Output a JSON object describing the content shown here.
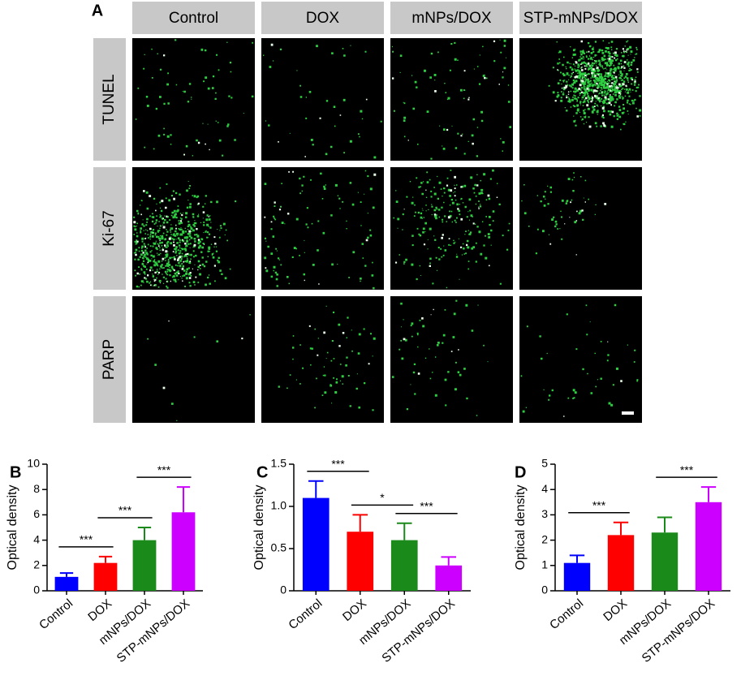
{
  "panel_a": {
    "label": "A",
    "columns": [
      "Control",
      "DOX",
      "mNPs/DOX",
      "STP-mNPs/DOX"
    ],
    "rows": [
      "TUNEL",
      "Ki-67",
      "PARP"
    ]
  },
  "chart_data": [
    {
      "type": "bar",
      "panel": "B",
      "ylabel": "Optical density",
      "categories": [
        "Control",
        "DOX",
        "mNPs/DOX",
        "STP-mNPs/DOX"
      ],
      "values": [
        1.1,
        2.2,
        4.0,
        6.2
      ],
      "errors": [
        0.3,
        0.5,
        1.0,
        2.0
      ],
      "colors": [
        "#0000ff",
        "#ff0000",
        "#1a8a1a",
        "#cc00ff"
      ],
      "ylim": [
        0,
        10
      ],
      "yticks": [
        0,
        2,
        4,
        6,
        8,
        10
      ],
      "annotations": [
        {
          "text": "***",
          "from": 0,
          "to": 1
        },
        {
          "text": "***",
          "from": 1,
          "to": 2
        },
        {
          "text": "***",
          "from": 2,
          "to": 3
        }
      ]
    },
    {
      "type": "bar",
      "panel": "C",
      "ylabel": "Optical density",
      "categories": [
        "Control",
        "DOX",
        "mNPs/DOX",
        "STP-mNPs/DOX"
      ],
      "values": [
        1.1,
        0.7,
        0.6,
        0.3
      ],
      "errors": [
        0.2,
        0.2,
        0.2,
        0.1
      ],
      "colors": [
        "#0000ff",
        "#ff0000",
        "#1a8a1a",
        "#cc00ff"
      ],
      "ylim": [
        0,
        1.5
      ],
      "yticks": [
        0,
        0.5,
        {
          "value": 1,
          "label": "1.0"
        },
        1.5
      ],
      "annotations": [
        {
          "text": "***",
          "from": 0,
          "to": 1
        },
        {
          "text": "*",
          "from": 1,
          "to": 2
        },
        {
          "text": "***",
          "from": 2,
          "to": 3
        }
      ]
    },
    {
      "type": "bar",
      "panel": "D",
      "ylabel": "Optical density",
      "categories": [
        "Control",
        "DOX",
        "mNPs/DOX",
        "STP-mNPs/DOX"
      ],
      "values": [
        1.1,
        2.2,
        2.3,
        3.5
      ],
      "errors": [
        0.3,
        0.5,
        0.6,
        0.6
      ],
      "colors": [
        "#0000ff",
        "#ff0000",
        "#1a8a1a",
        "#cc00ff"
      ],
      "ylim": [
        0,
        5
      ],
      "yticks": [
        0,
        1,
        2,
        3,
        4,
        5
      ],
      "annotations": [
        {
          "text": "***",
          "from": 0,
          "to": 1
        },
        {
          "text": "***",
          "from": 2,
          "to": 3
        }
      ]
    }
  ]
}
